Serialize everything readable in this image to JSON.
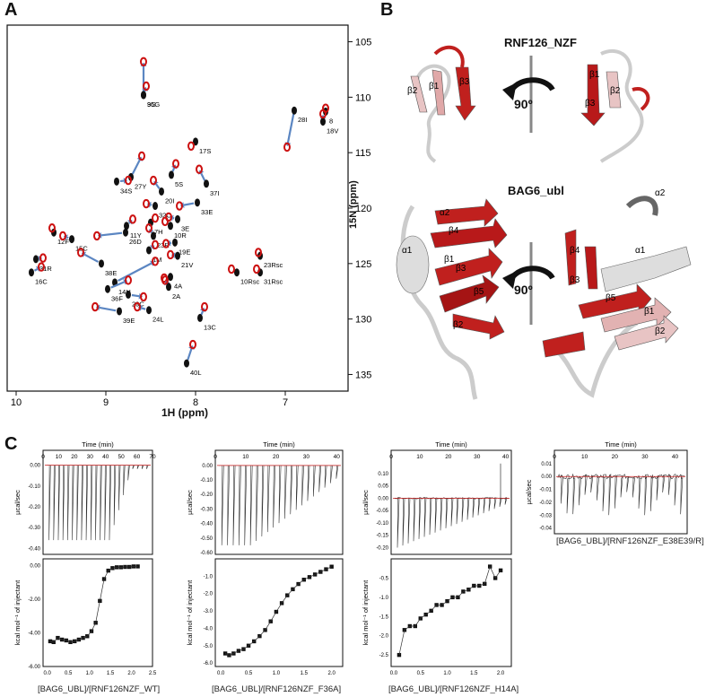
{
  "panels": {
    "a": "A",
    "b": "B",
    "c": "C"
  },
  "colors": {
    "red": "#cc1111",
    "blue": "#5b86c2",
    "black": "#111111"
  },
  "panelA": {
    "xlabel": "1H (ppm)",
    "ylabel": "15N (ppm)",
    "xticks": [
      "10",
      "9",
      "8",
      "7"
    ],
    "yticks": [
      "105",
      "110",
      "115",
      "120",
      "125",
      "130",
      "135"
    ],
    "peaks": [
      {
        "label": "9G",
        "bx": 8.58,
        "by": 109.8,
        "rx": 8.58,
        "ry": 106.8
      },
      {
        "label": "35G",
        "bx": 8.58,
        "by": 109.8,
        "rx": 8.55,
        "ry": 109.0
      },
      {
        "label": "28I",
        "bx": 6.9,
        "by": 111.2,
        "rx": 6.98,
        "ry": 114.5
      },
      {
        "label": "8",
        "bx": 6.55,
        "by": 111.3,
        "rx": 6.55,
        "ry": 111.0
      },
      {
        "label": "18V",
        "bx": 6.58,
        "by": 112.2,
        "rx": 6.58,
        "ry": 111.5
      },
      {
        "label": "17S",
        "bx": 8.0,
        "by": 114.0,
        "rx": 8.05,
        "ry": 114.4
      },
      {
        "label": "5S",
        "bx": 8.27,
        "by": 117.0,
        "rx": 8.22,
        "ry": 116.0
      },
      {
        "label": "37I",
        "bx": 7.88,
        "by": 117.8,
        "rx": 7.96,
        "ry": 116.5
      },
      {
        "label": "27Y",
        "bx": 8.72,
        "by": 117.2,
        "rx": 8.6,
        "ry": 115.3
      },
      {
        "label": "20I",
        "bx": 8.38,
        "by": 118.5,
        "rx": 8.47,
        "ry": 117.5
      },
      {
        "label": "34S",
        "bx": 8.88,
        "by": 117.6,
        "rx": 8.75,
        "ry": 117.5
      },
      {
        "label": "32C",
        "bx": 8.45,
        "by": 119.8,
        "rx": 8.55,
        "ry": 119.6
      },
      {
        "label": "33E",
        "bx": 7.98,
        "by": 119.5,
        "rx": 8.18,
        "ry": 119.8
      },
      {
        "label": "3E",
        "bx": 8.2,
        "by": 121.0,
        "rx": 8.3,
        "ry": 120.8
      },
      {
        "label": "11Y",
        "bx": 8.77,
        "by": 121.6,
        "rx": 8.7,
        "ry": 121.0
      },
      {
        "label": "7H",
        "bx": 8.5,
        "by": 121.3,
        "rx": 8.45,
        "ry": 120.9
      },
      {
        "label": "10R",
        "bx": 8.28,
        "by": 121.6,
        "rx": 8.34,
        "ry": 121.2
      },
      {
        "label": "26D",
        "bx": 8.78,
        "by": 122.2,
        "rx": 9.1,
        "ry": 122.5
      },
      {
        "label": "23R",
        "bx": 8.47,
        "by": 122.5,
        "rx": 8.52,
        "ry": 121.8
      },
      {
        "label": "12F",
        "bx": 9.58,
        "by": 122.2,
        "rx": 9.6,
        "ry": 121.8
      },
      {
        "label": "15C",
        "bx": 9.38,
        "by": 122.8,
        "rx": 9.48,
        "ry": 122.5
      },
      {
        "label": "19E",
        "bx": 8.23,
        "by": 123.1,
        "rx": 8.33,
        "ry": 123.2
      },
      {
        "label": "1M",
        "bx": 8.52,
        "by": 123.8,
        "rx": 8.45,
        "ry": 123.3
      },
      {
        "label": "21V",
        "bx": 8.2,
        "by": 124.3,
        "rx": 8.28,
        "ry": 124.2
      },
      {
        "label": "31R",
        "bx": 9.78,
        "by": 124.6,
        "rx": 9.7,
        "ry": 124.5
      },
      {
        "label": "38E",
        "bx": 9.05,
        "by": 125.0,
        "rx": 9.28,
        "ry": 124.0
      },
      {
        "label": "16C",
        "bx": 9.83,
        "by": 125.8,
        "rx": 9.72,
        "ry": 125.3
      },
      {
        "label": "4A",
        "bx": 8.28,
        "by": 126.2,
        "rx": 8.35,
        "ry": 126.3
      },
      {
        "label": "14H",
        "bx": 8.9,
        "by": 126.7,
        "rx": 8.45,
        "ry": 124.8
      },
      {
        "label": "2A",
        "bx": 8.3,
        "by": 127.1,
        "rx": 8.34,
        "ry": 126.5
      },
      {
        "label": "36F",
        "bx": 8.98,
        "by": 127.3,
        "rx": 8.75,
        "ry": 126.5
      },
      {
        "label": "29C",
        "bx": 8.75,
        "by": 127.8,
        "rx": 8.58,
        "ry": 128.0
      },
      {
        "label": "39E",
        "bx": 8.85,
        "by": 129.3,
        "rx": 9.12,
        "ry": 128.9
      },
      {
        "label": "24L",
        "bx": 8.52,
        "by": 129.2,
        "rx": 8.65,
        "ry": 128.9
      },
      {
        "label": "13C",
        "bx": 7.95,
        "by": 129.9,
        "rx": 7.9,
        "ry": 128.9
      },
      {
        "label": "40L",
        "bx": 8.1,
        "by": 134.0,
        "rx": 8.03,
        "ry": 132.3
      },
      {
        "label": "23Rsc",
        "bx": 7.28,
        "by": 124.3,
        "rx": 7.3,
        "ry": 124.0
      },
      {
        "label": "10Rsc",
        "bx": 7.54,
        "by": 125.8,
        "rx": 7.6,
        "ry": 125.5
      },
      {
        "label": "31Rsc",
        "bx": 7.28,
        "by": 125.8,
        "rx": 7.32,
        "ry": 125.5
      }
    ]
  },
  "panelB": {
    "title_top": "RNF126_NZF",
    "title_bottom": "BAG6_ubl",
    "rotation": "90º",
    "top_labels": [
      "β2",
      "β1",
      "β3",
      "β1",
      "β2",
      "β3"
    ],
    "bottom_labels": [
      "α2",
      "β4",
      "α1",
      "β1",
      "β3",
      "β5",
      "β2",
      "α2",
      "β4",
      "β3",
      "α1",
      "β5",
      "β1",
      "β2"
    ]
  },
  "panelC": {
    "top_xlabel": "Time (min)",
    "top_ylabel": "µcal/sec",
    "bottom_ylabel": "kcal mol⁻¹ of injectant",
    "plots": [
      {
        "caption": "[BAG6_UBL]/[RNF126NZF_WT]",
        "time_ticks": [
          "0",
          "10",
          "20",
          "30",
          "40",
          "50",
          "60",
          "70"
        ],
        "top_yticks": [
          "0.00",
          "-0.10",
          "-0.20",
          "-0.30",
          "-0.40"
        ],
        "bottom_yticks": [
          "0.00",
          "-2.00",
          "-4.00",
          "-6.00"
        ],
        "x_ticks": [
          "0.0",
          "0.5",
          "1.0",
          "1.5",
          "2.0",
          "2.5"
        ],
        "points_x": [
          0.07,
          0.15,
          0.25,
          0.35,
          0.45,
          0.55,
          0.65,
          0.75,
          0.85,
          0.95,
          1.05,
          1.15,
          1.25,
          1.35,
          1.45,
          1.55,
          1.65,
          1.75,
          1.85,
          1.95,
          2.05,
          2.15
        ],
        "points_y": [
          -4.5,
          -4.55,
          -4.3,
          -4.4,
          -4.45,
          -4.55,
          -4.5,
          -4.4,
          -4.3,
          -4.2,
          -3.9,
          -3.4,
          -2.1,
          -0.8,
          -0.3,
          -0.15,
          -0.1,
          -0.1,
          -0.08,
          -0.08,
          -0.05,
          -0.05
        ]
      },
      {
        "caption": "[BAG6_UBL]/[RNF126NZF_F36A]",
        "time_ticks": [
          "0",
          "10",
          "20",
          "30",
          "40"
        ],
        "top_yticks": [
          "0.00",
          "-0.10",
          "-0.20",
          "-0.30",
          "-0.40",
          "-0.50",
          "-0.60"
        ],
        "bottom_yticks": [
          "-1.0",
          "-2.0",
          "-3.0",
          "-4.0",
          "-5.0",
          "-6.0"
        ],
        "x_ticks": [
          "0.0",
          "0.5",
          "1.0",
          "1.5",
          "2.0"
        ],
        "points_x": [
          0.08,
          0.15,
          0.23,
          0.32,
          0.41,
          0.5,
          0.6,
          0.7,
          0.8,
          0.9,
          1.0,
          1.1,
          1.2,
          1.3,
          1.4,
          1.5,
          1.6,
          1.7,
          1.8,
          1.9,
          2.0
        ],
        "points_y": [
          -5.45,
          -5.55,
          -5.45,
          -5.3,
          -5.2,
          -5.0,
          -4.75,
          -4.45,
          -4.1,
          -3.6,
          -3.05,
          -2.55,
          -2.1,
          -1.75,
          -1.45,
          -1.2,
          -1.05,
          -0.9,
          -0.75,
          -0.6,
          -0.45
        ]
      },
      {
        "caption": "[BAG6_UBL]/[RNF126NZF_H14A]",
        "time_ticks": [
          "0",
          "10",
          "20",
          "30",
          "40"
        ],
        "top_yticks": [
          "0.10",
          "0.05",
          "0.00",
          "-0.05",
          "-0.10",
          "-0.15",
          "-0.20"
        ],
        "bottom_yticks": [
          "-0.5",
          "-1.0",
          "-1.5",
          "-2.0",
          "-2.5"
        ],
        "x_ticks": [
          "0.0",
          "0.5",
          "1.0",
          "1.5",
          "2.0"
        ],
        "points_x": [
          0.1,
          0.2,
          0.3,
          0.4,
          0.5,
          0.6,
          0.7,
          0.8,
          0.9,
          1.0,
          1.1,
          1.2,
          1.3,
          1.4,
          1.5,
          1.6,
          1.7,
          1.8,
          1.9,
          2.0
        ],
        "points_y": [
          -2.5,
          -1.85,
          -1.75,
          -1.75,
          -1.55,
          -1.45,
          -1.35,
          -1.2,
          -1.2,
          -1.1,
          -1.0,
          -1.0,
          -0.85,
          -0.8,
          -0.7,
          -0.7,
          -0.65,
          -0.2,
          -0.5,
          -0.3
        ]
      },
      {
        "caption": "[BAG6_UBL]/[RNF126NZF_E38E39/R]",
        "time_ticks": [
          "0",
          "10",
          "20",
          "30",
          "40"
        ],
        "top_yticks": [
          "0.01",
          "0.00",
          "-0.01",
          "-0.02",
          "-0.03",
          "-0.04"
        ],
        "bottom_yticks": [],
        "x_ticks": [],
        "points_x": [],
        "points_y": []
      }
    ]
  }
}
